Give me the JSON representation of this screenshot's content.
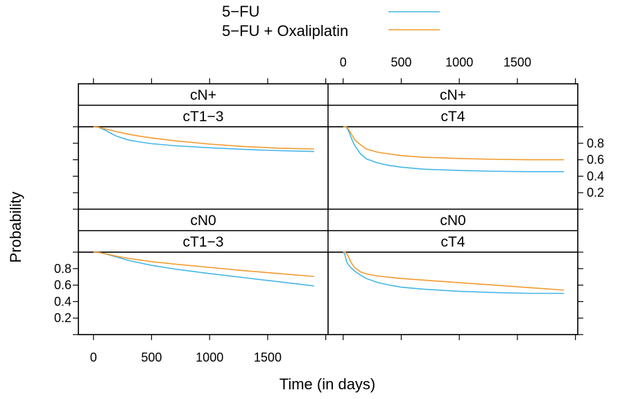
{
  "chart_data": {
    "type": "line",
    "xlabel": "Time (in days)",
    "ylabel": "Probability",
    "xlim": [
      -130,
      2020
    ],
    "ylim": [
      0,
      1
    ],
    "x_ticks": [
      0,
      500,
      1000,
      1500
    ],
    "y_ticks": [
      0.2,
      0.4,
      0.6,
      0.8
    ],
    "legend": {
      "placement": "top",
      "entries": [
        {
          "label": "5−FU",
          "color": "#44b6e8"
        },
        {
          "label": "5−FU + Oxaliplatin",
          "color": "#f29a2e"
        }
      ]
    },
    "panels": [
      {
        "strips": [
          "cN+",
          "cT1−3"
        ],
        "row": "top",
        "col": "left",
        "series": [
          {
            "legend_index": 0,
            "x": [
              0,
              40,
              100,
              150,
              200,
              300,
              400,
              500,
              700,
              1000,
              1300,
              1600,
              1900
            ],
            "y": [
              1.0,
              0.995,
              0.96,
              0.92,
              0.885,
              0.84,
              0.815,
              0.795,
              0.77,
              0.745,
              0.725,
              0.71,
              0.7
            ]
          },
          {
            "legend_index": 1,
            "x": [
              0,
              40,
              100,
              200,
              300,
              400,
              500,
              700,
              1000,
              1300,
              1600,
              1900
            ],
            "y": [
              1.0,
              0.995,
              0.975,
              0.94,
              0.91,
              0.885,
              0.865,
              0.83,
              0.79,
              0.76,
              0.74,
              0.73
            ]
          }
        ]
      },
      {
        "strips": [
          "cN+",
          "cT4"
        ],
        "row": "top",
        "col": "right",
        "series": [
          {
            "legend_index": 0,
            "x": [
              0,
              20,
              40,
              60,
              80,
              100,
              150,
              200,
              300,
              400,
              500,
              700,
              1000,
              1300,
              1600,
              1900
            ],
            "y": [
              1.0,
              1.0,
              0.97,
              0.9,
              0.83,
              0.77,
              0.67,
              0.61,
              0.56,
              0.53,
              0.51,
              0.485,
              0.47,
              0.46,
              0.455,
              0.455
            ]
          },
          {
            "legend_index": 1,
            "x": [
              0,
              30,
              50,
              80,
              100,
              150,
              200,
              300,
              400,
              500,
              700,
              1000,
              1300,
              1600,
              1900
            ],
            "y": [
              1.0,
              1.0,
              0.96,
              0.89,
              0.84,
              0.78,
              0.73,
              0.69,
              0.67,
              0.65,
              0.63,
              0.615,
              0.605,
              0.6,
              0.6
            ]
          }
        ]
      },
      {
        "strips": [
          "cN0",
          "cT1−3"
        ],
        "row": "bottom",
        "col": "left",
        "series": [
          {
            "legend_index": 0,
            "x": [
              0,
              50,
              100,
              200,
              300,
              400,
              500,
              700,
              1000,
              1300,
              1600,
              1900
            ],
            "y": [
              1.0,
              0.995,
              0.98,
              0.94,
              0.9,
              0.87,
              0.84,
              0.795,
              0.74,
              0.69,
              0.64,
              0.59
            ]
          },
          {
            "legend_index": 1,
            "x": [
              0,
              50,
              100,
              200,
              300,
              400,
              500,
              700,
              1000,
              1300,
              1600,
              1900
            ],
            "y": [
              1.0,
              0.995,
              0.98,
              0.95,
              0.925,
              0.905,
              0.885,
              0.855,
              0.815,
              0.775,
              0.74,
              0.705
            ]
          }
        ]
      },
      {
        "strips": [
          "cN0",
          "cT4"
        ],
        "row": "bottom",
        "col": "right",
        "series": [
          {
            "legend_index": 0,
            "x": [
              0,
              15,
              30,
              60,
              100,
              150,
              200,
              300,
              400,
              500,
              700,
              1000,
              1300,
              1600,
              1900
            ],
            "y": [
              1.0,
              0.97,
              0.88,
              0.82,
              0.77,
              0.72,
              0.68,
              0.63,
              0.6,
              0.575,
              0.55,
              0.525,
              0.51,
              0.5,
              0.5
            ]
          },
          {
            "legend_index": 1,
            "x": [
              0,
              20,
              40,
              70,
              100,
              150,
              200,
              300,
              400,
              500,
              700,
              1000,
              1300,
              1600,
              1900
            ],
            "y": [
              1.0,
              1.0,
              0.96,
              0.87,
              0.81,
              0.76,
              0.735,
              0.71,
              0.695,
              0.68,
              0.66,
              0.63,
              0.6,
              0.57,
              0.54
            ]
          }
        ]
      }
    ]
  }
}
